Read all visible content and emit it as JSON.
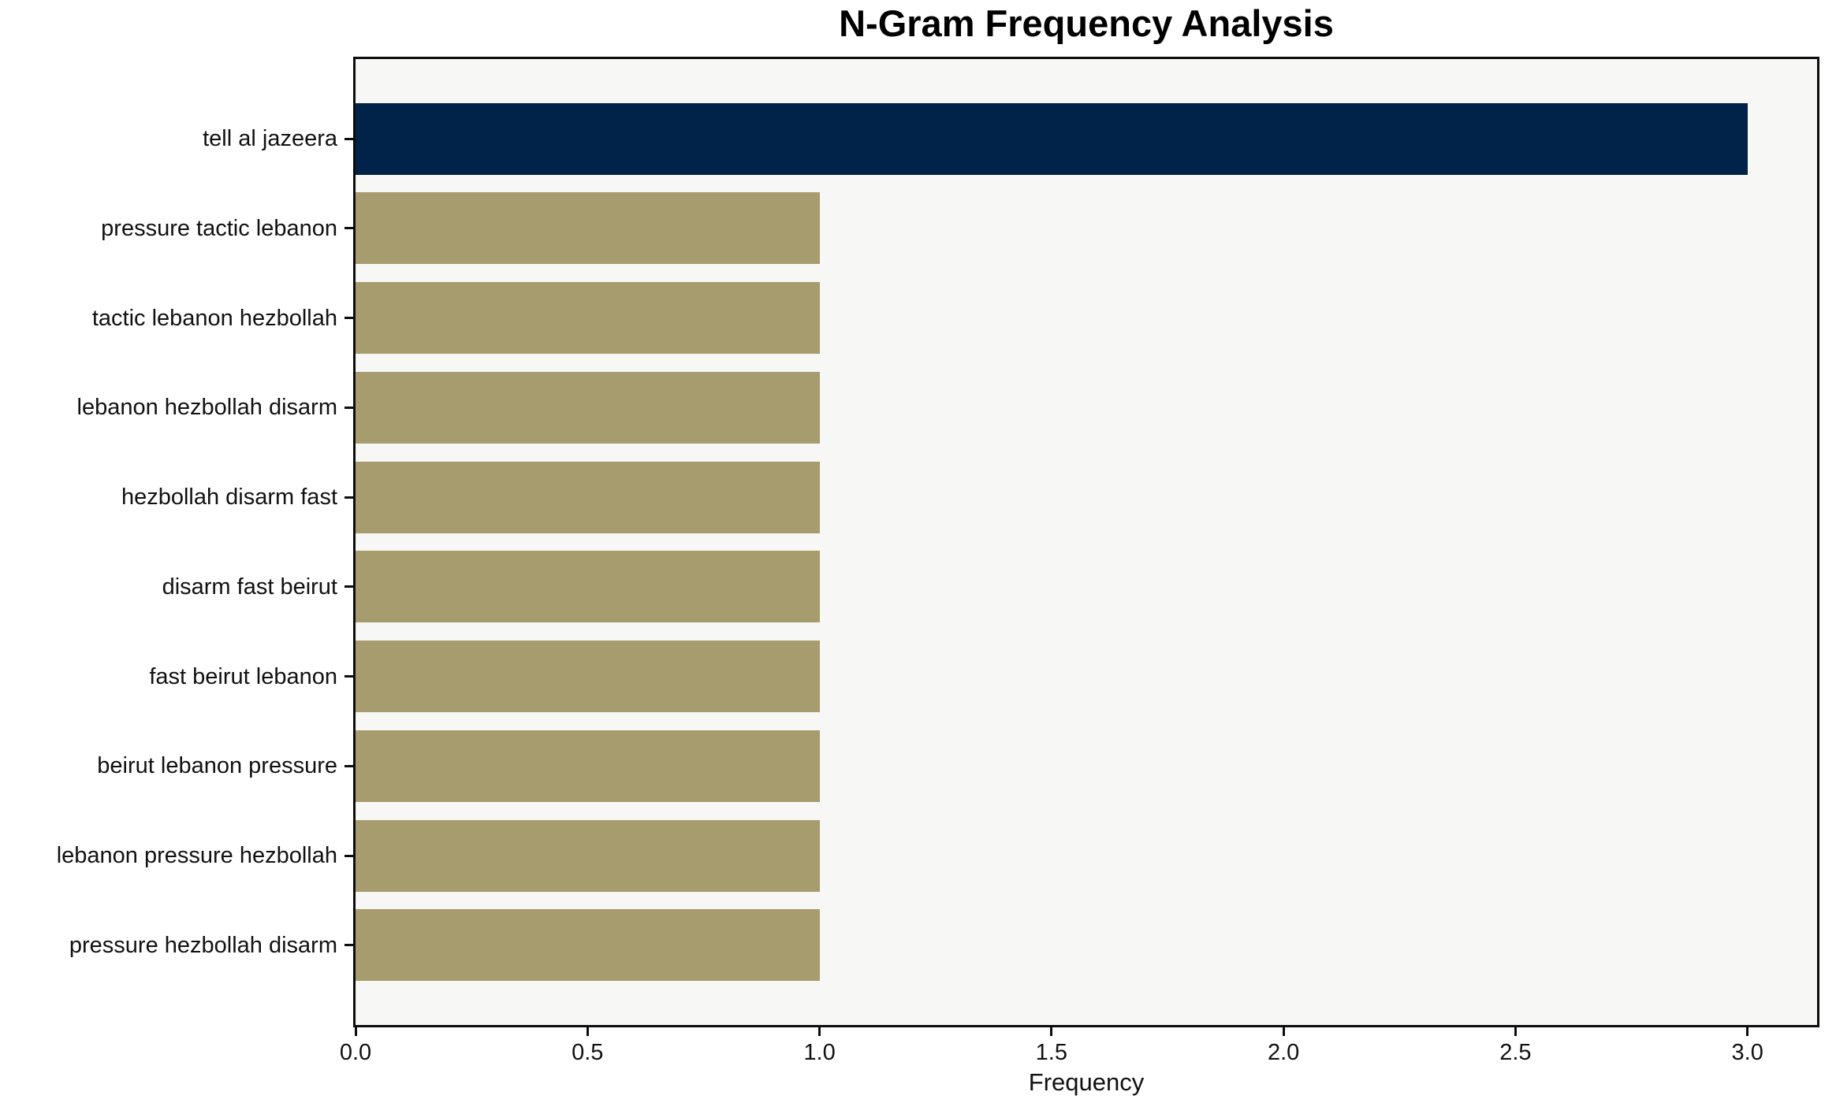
{
  "chart_data": {
    "type": "bar",
    "orientation": "horizontal",
    "title": "N-Gram Frequency Analysis",
    "xlabel": "Frequency",
    "ylabel": "",
    "categories": [
      "tell al jazeera",
      "pressure tactic lebanon",
      "tactic lebanon hezbollah",
      "lebanon hezbollah disarm",
      "hezbollah disarm fast",
      "disarm fast beirut",
      "fast beirut lebanon",
      "beirut lebanon pressure",
      "lebanon pressure hezbollah",
      "pressure hezbollah disarm"
    ],
    "values": [
      3,
      1,
      1,
      1,
      1,
      1,
      1,
      1,
      1,
      1
    ],
    "bar_colors": [
      "#022349",
      "#a69c6e",
      "#a69c6e",
      "#a69c6e",
      "#a69c6e",
      "#a69c6e",
      "#a69c6e",
      "#a69c6e",
      "#a69c6e",
      "#a69c6e"
    ],
    "xlim": [
      0,
      3.15
    ],
    "xticks": [
      0.0,
      0.5,
      1.0,
      1.5,
      2.0,
      2.5,
      3.0
    ],
    "xtick_labels": [
      "0.0",
      "0.5",
      "1.0",
      "1.5",
      "2.0",
      "2.5",
      "3.0"
    ],
    "grid": false,
    "legend": "none",
    "plot_background": "#f7f7f6",
    "figure_background": "#ffffff",
    "axis_color": "#0d0d0d",
    "highlight_color": "#022349",
    "default_bar_color": "#a69c6e"
  }
}
